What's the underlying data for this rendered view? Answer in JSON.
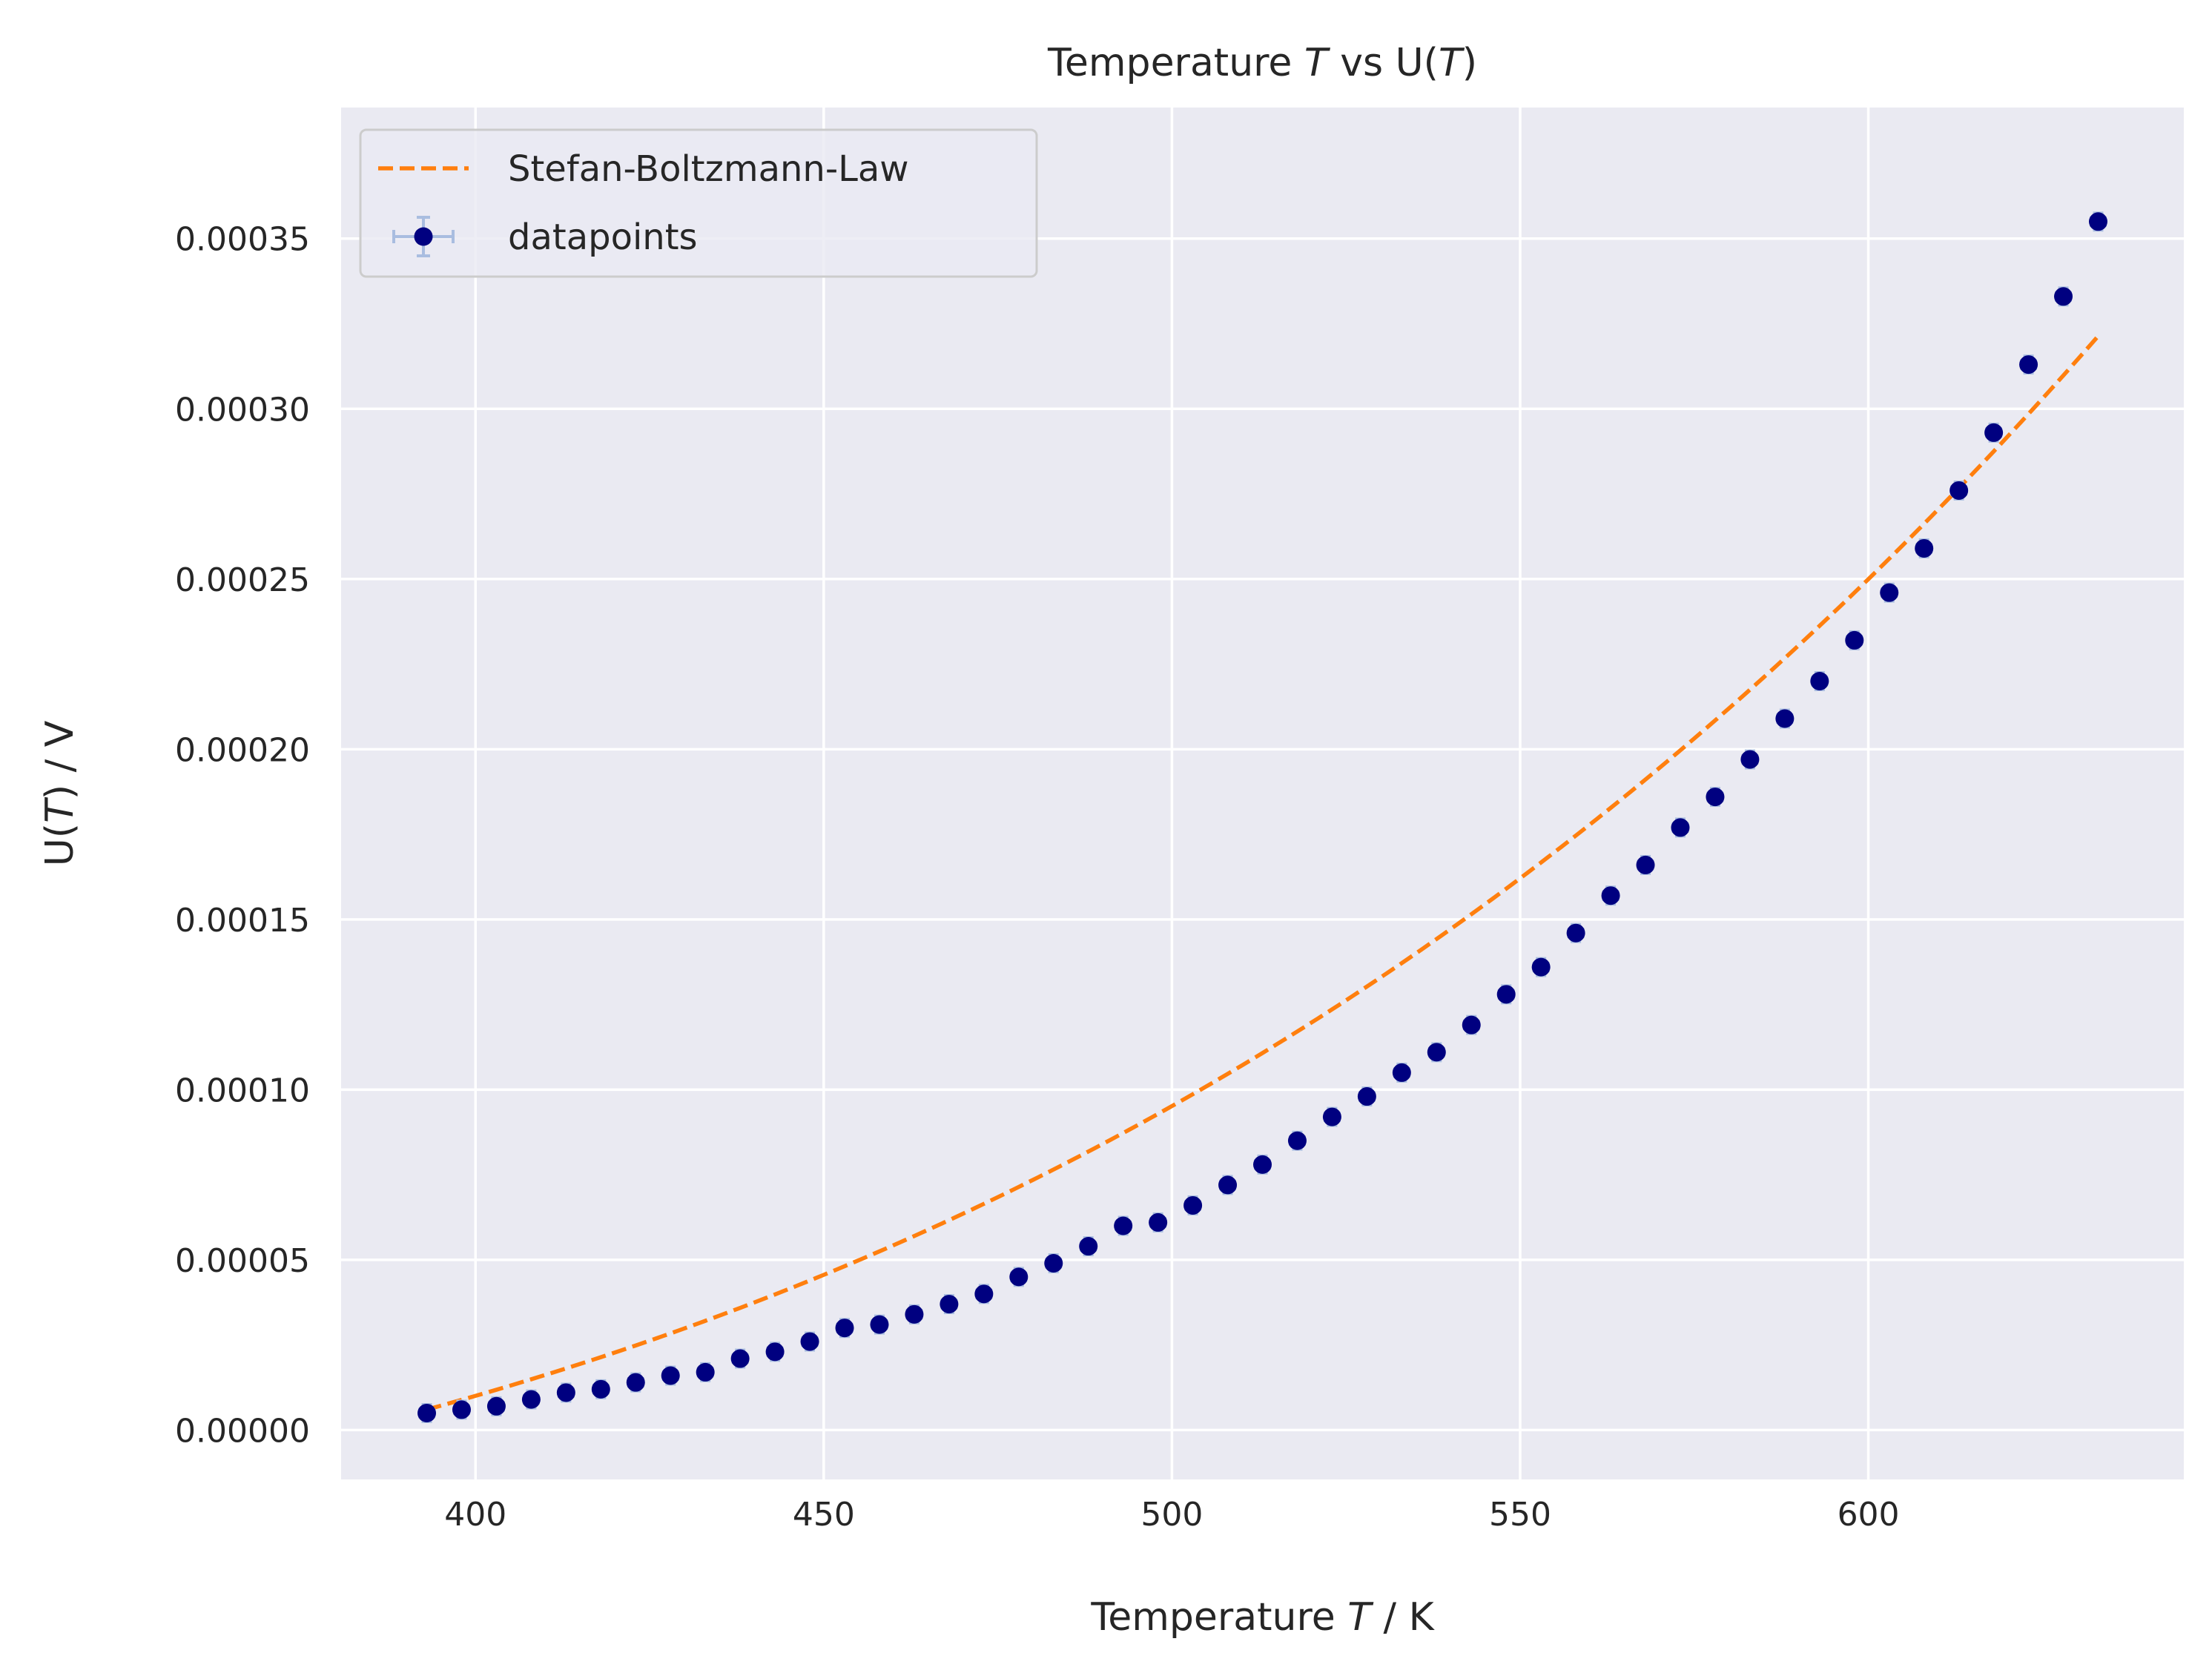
{
  "chart_data": {
    "type": "scatter",
    "title": {
      "pre": "Temperature ",
      "var": "T",
      "mid": " vs U(",
      "var2": "T",
      "post": ")"
    },
    "xlabel": {
      "pre": "Temperature ",
      "var": "T",
      "post": " / K"
    },
    "ylabel": {
      "pre": "U(",
      "var": "T",
      "post": ") / V"
    },
    "xlim": [
      380.7,
      645.3
    ],
    "ylim": [
      -1.45e-05,
      0.0003885
    ],
    "x_ticks": [
      400,
      450,
      500,
      550,
      600
    ],
    "y_ticks": [
      0.0,
      5e-05,
      0.0001,
      0.00015,
      0.0002,
      0.00025,
      0.0003,
      0.00035
    ],
    "x_tick_labels": [
      "400",
      "450",
      "500",
      "550",
      "600"
    ],
    "y_tick_labels": [
      "0.00000",
      "0.00005",
      "0.00010",
      "0.00015",
      "0.00020",
      "0.00025",
      "0.00030",
      "0.00035"
    ],
    "grid": true,
    "legend_position": "top-left",
    "series": [
      {
        "name": "Stefan-Boltzmann-Law",
        "kind": "line",
        "style": "dashed",
        "color": "#ff7f0e",
        "model": {
          "form": "a*T^4 + c",
          "a": 2.3068e-15,
          "c": -4.9e-05
        }
      },
      {
        "name": "datapoints",
        "kind": "errorbar",
        "color": "#000080",
        "error_color": "#a9bde0",
        "x_err": 1.0,
        "y_err": 2.5e-06,
        "x": [
          393,
          398,
          403,
          408,
          413,
          418,
          423,
          428,
          433,
          438,
          443,
          448,
          453,
          458,
          463,
          468,
          473,
          478,
          483,
          488,
          493,
          498,
          503,
          508,
          513,
          518,
          523,
          528,
          533,
          538,
          543,
          548,
          553,
          558,
          563,
          568,
          573,
          578,
          583,
          588,
          593,
          598,
          603,
          608,
          613,
          618,
          623,
          628,
          633
        ],
        "y": [
          5e-06,
          6e-06,
          7e-06,
          9e-06,
          1.1e-05,
          1.2e-05,
          1.4e-05,
          1.6e-05,
          1.7e-05,
          2.1e-05,
          2.3e-05,
          2.6e-05,
          3e-05,
          3.1e-05,
          3.4e-05,
          3.7e-05,
          4e-05,
          4.5e-05,
          4.9e-05,
          5.4e-05,
          6e-05,
          6.1e-05,
          6.6e-05,
          7.2e-05,
          7.8e-05,
          8.5e-05,
          9.2e-05,
          9.8e-05,
          0.000105,
          0.000111,
          0.000119,
          0.000128,
          0.000136,
          0.000146,
          0.000157,
          0.000166,
          0.000177,
          0.000186,
          0.000197,
          0.000209,
          0.00022,
          0.000232,
          0.000246,
          0.000259,
          0.000276,
          0.000293,
          0.000313,
          0.000333,
          0.000355
        ]
      }
    ]
  }
}
